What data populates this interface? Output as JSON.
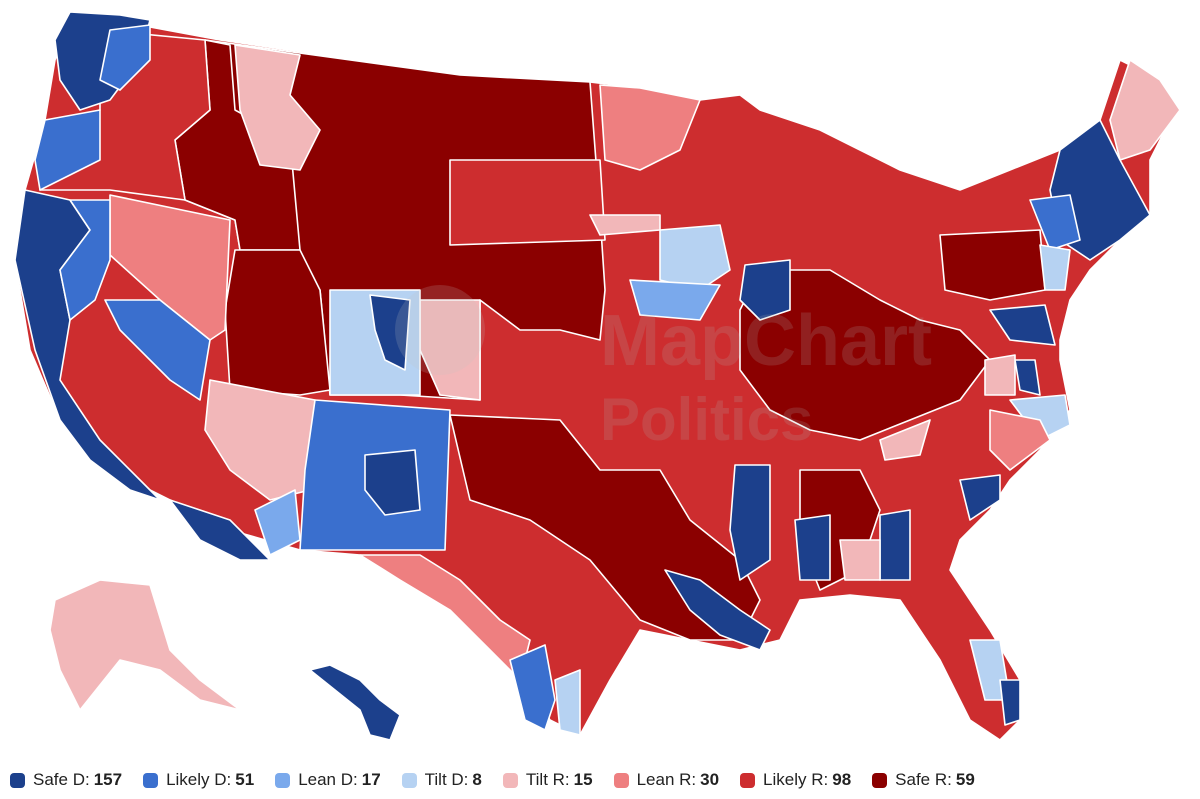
{
  "watermark": {
    "line1": "MapChart",
    "line2": "Politics"
  },
  "colors": {
    "safe_d": "#1c408c",
    "likely_d": "#3a6fce",
    "lean_d": "#7aa9ec",
    "tilt_d": "#b6d2f2",
    "tilt_r": "#f2b7b9",
    "lean_r": "#ee7f80",
    "likely_r": "#cd2d2f",
    "safe_r": "#8b0000"
  },
  "legend": [
    {
      "key": "safe_d",
      "label": "Safe D:",
      "count": "157",
      "color": "#1c408c"
    },
    {
      "key": "likely_d",
      "label": "Likely D:",
      "count": "51",
      "color": "#3a6fce"
    },
    {
      "key": "lean_d",
      "label": "Lean D:",
      "count": "17",
      "color": "#7aa9ec"
    },
    {
      "key": "tilt_d",
      "label": "Tilt D:",
      "count": "8",
      "color": "#b6d2f2"
    },
    {
      "key": "tilt_r",
      "label": "Tilt R:",
      "count": "15",
      "color": "#f2b7b9"
    },
    {
      "key": "lean_r",
      "label": "Lean R:",
      "count": "30",
      "color": "#ee7f80"
    },
    {
      "key": "likely_r",
      "label": "Likely R:",
      "count": "98",
      "color": "#cd2d2f"
    },
    {
      "key": "safe_r",
      "label": "Safe R:",
      "count": "59",
      "color": "#8b0000"
    }
  ]
}
